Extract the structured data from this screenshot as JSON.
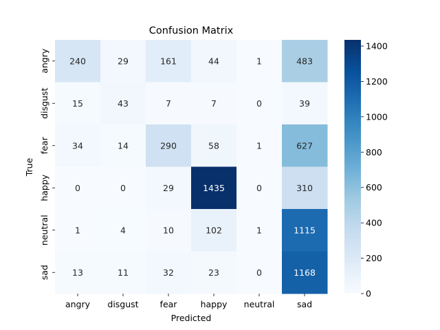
{
  "chart_data": {
    "type": "heatmap",
    "title": "Confusion Matrix",
    "xlabel": "Predicted",
    "ylabel": "True",
    "x_categories": [
      "angry",
      "disgust",
      "fear",
      "happy",
      "neutral",
      "sad"
    ],
    "y_categories": [
      "angry",
      "disgust",
      "fear",
      "happy",
      "neutral",
      "sad"
    ],
    "values": [
      [
        240,
        29,
        161,
        44,
        1,
        483
      ],
      [
        15,
        43,
        7,
        7,
        0,
        39
      ],
      [
        34,
        14,
        290,
        58,
        1,
        627
      ],
      [
        0,
        0,
        29,
        1435,
        0,
        310
      ],
      [
        1,
        4,
        10,
        102,
        1,
        1115
      ],
      [
        13,
        11,
        32,
        23,
        0,
        1168
      ]
    ],
    "colormap": "Blues",
    "colorbar": {
      "range": [
        0,
        1435
      ],
      "ticks": [
        0,
        200,
        400,
        600,
        800,
        1000,
        1200,
        1400
      ]
    },
    "grid": false,
    "annotate": true
  }
}
